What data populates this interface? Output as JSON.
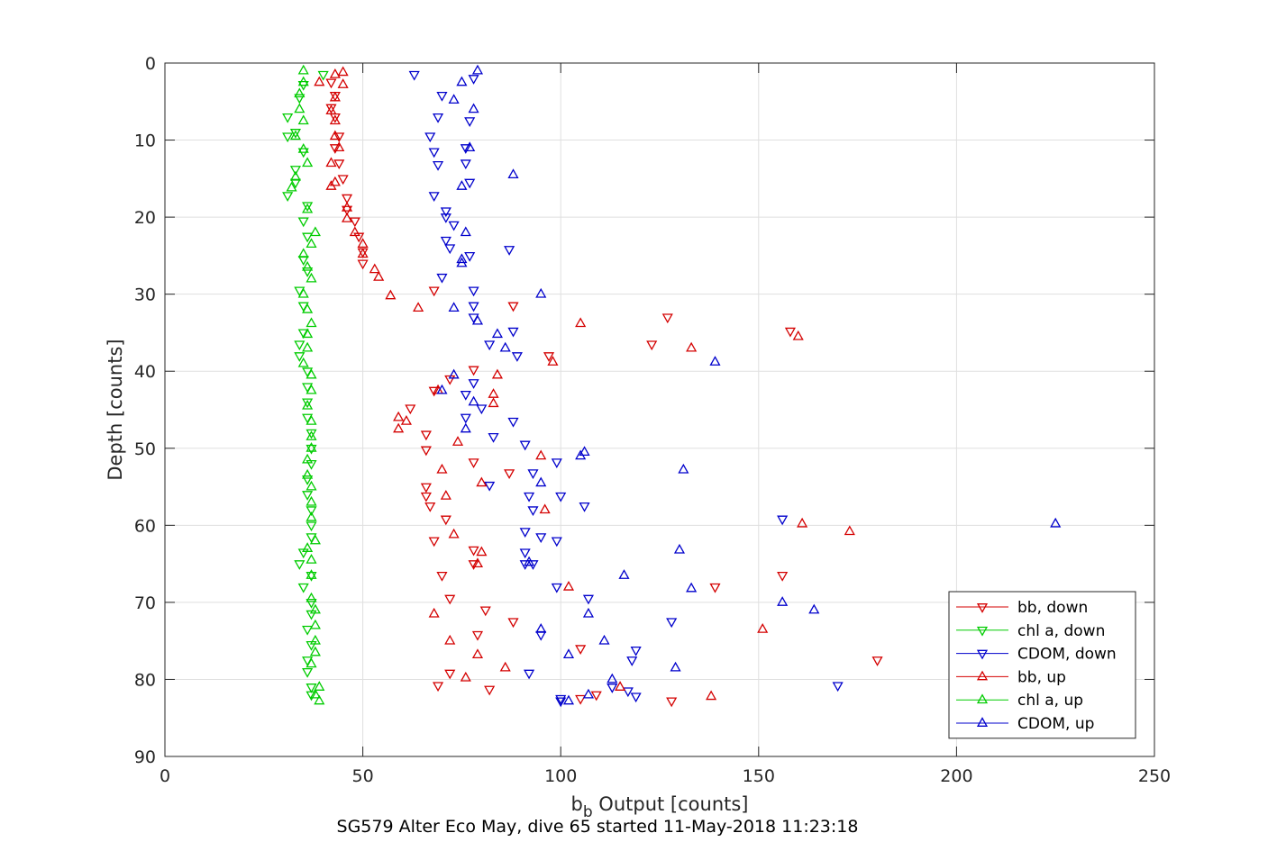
{
  "chart_data": {
    "type": "scatter",
    "title": "",
    "xlabel_main": "b",
    "xlabel_sub": "b",
    "xlabel_rest": " Output [counts]",
    "ylabel": "Depth [counts]",
    "footer": "SG579 Alter Eco May, dive 65 started 11-May-2018 11:23:18",
    "xlim": [
      0,
      250
    ],
    "ylim": [
      0,
      90
    ],
    "y_reversed": true,
    "grid": true,
    "x_ticks": [
      "0",
      "50",
      "100",
      "150",
      "200",
      "250"
    ],
    "y_ticks": [
      "0",
      "10",
      "20",
      "30",
      "40",
      "50",
      "60",
      "70",
      "80",
      "90"
    ],
    "legend_position": "lower-right",
    "series": [
      {
        "name": "bb, down",
        "color": "#d40000",
        "marker": "triangle-down",
        "points": [
          [
            42,
            2.5
          ],
          [
            43,
            4.2
          ],
          [
            42,
            5.8
          ],
          [
            43,
            7.0
          ],
          [
            44,
            9.5
          ],
          [
            43,
            11.0
          ],
          [
            44,
            13.0
          ],
          [
            45,
            15.0
          ],
          [
            46,
            17.5
          ],
          [
            46,
            19.0
          ],
          [
            48,
            20.5
          ],
          [
            49,
            22.5
          ],
          [
            50,
            24.5
          ],
          [
            50,
            26.0
          ],
          [
            68,
            29.5
          ],
          [
            88,
            31.5
          ],
          [
            127,
            33.0
          ],
          [
            158,
            34.8
          ],
          [
            123,
            36.5
          ],
          [
            97,
            38.0
          ],
          [
            78,
            39.8
          ],
          [
            72,
            41.0
          ],
          [
            68,
            42.5
          ],
          [
            62,
            44.8
          ],
          [
            66,
            48.2
          ],
          [
            66,
            50.2
          ],
          [
            78,
            51.8
          ],
          [
            87,
            53.2
          ],
          [
            66,
            55.0
          ],
          [
            66,
            56.2
          ],
          [
            67,
            57.5
          ],
          [
            71,
            59.2
          ],
          [
            68,
            62.0
          ],
          [
            78,
            63.2
          ],
          [
            78,
            65.0
          ],
          [
            70,
            66.5
          ],
          [
            156,
            66.5
          ],
          [
            139,
            68.0
          ],
          [
            72,
            69.5
          ],
          [
            81,
            71.0
          ],
          [
            88,
            72.5
          ],
          [
            79,
            74.2
          ],
          [
            105,
            76.0
          ],
          [
            180,
            77.5
          ],
          [
            72,
            79.2
          ],
          [
            69,
            80.8
          ],
          [
            82,
            81.3
          ],
          [
            109,
            82.0
          ],
          [
            105,
            82.5
          ],
          [
            128,
            82.8
          ]
        ]
      },
      {
        "name": "chl a, down",
        "color": "#00cc00",
        "marker": "triangle-down",
        "points": [
          [
            40,
            1.5
          ],
          [
            35,
            2.8
          ],
          [
            34,
            4.5
          ],
          [
            31,
            7.0
          ],
          [
            33,
            9.0
          ],
          [
            31,
            9.5
          ],
          [
            35,
            11.5
          ],
          [
            33,
            13.8
          ],
          [
            33,
            15.5
          ],
          [
            31,
            17.2
          ],
          [
            36,
            18.5
          ],
          [
            35,
            20.5
          ],
          [
            36,
            22.5
          ],
          [
            35,
            25.5
          ],
          [
            36,
            27.0
          ],
          [
            34,
            29.5
          ],
          [
            35,
            31.5
          ],
          [
            35,
            35.0
          ],
          [
            34,
            36.5
          ],
          [
            34,
            38.0
          ],
          [
            36,
            40.0
          ],
          [
            36,
            42.0
          ],
          [
            36,
            44.0
          ],
          [
            36,
            46.0
          ],
          [
            37,
            48.0
          ],
          [
            37,
            50.0
          ],
          [
            37,
            52.0
          ],
          [
            36,
            54.0
          ],
          [
            36,
            56.0
          ],
          [
            37,
            58.0
          ],
          [
            37,
            60.0
          ],
          [
            37,
            61.5
          ],
          [
            35,
            63.5
          ],
          [
            34,
            65.0
          ],
          [
            37,
            66.5
          ],
          [
            35,
            68.0
          ],
          [
            37,
            70.0
          ],
          [
            37,
            71.5
          ],
          [
            36,
            73.5
          ],
          [
            37,
            75.5
          ],
          [
            36,
            77.5
          ],
          [
            36,
            79.0
          ],
          [
            37,
            81.0
          ],
          [
            37,
            82.0
          ]
        ]
      },
      {
        "name": "CDOM, down",
        "color": "#0000cc",
        "marker": "triangle-down",
        "points": [
          [
            63,
            1.5
          ],
          [
            78,
            2.0
          ],
          [
            70,
            4.2
          ],
          [
            77,
            7.5
          ],
          [
            69,
            7.0
          ],
          [
            67,
            9.5
          ],
          [
            68,
            11.5
          ],
          [
            69,
            13.2
          ],
          [
            76,
            11.0
          ],
          [
            76,
            13.0
          ],
          [
            77,
            15.5
          ],
          [
            68,
            17.2
          ],
          [
            71,
            19.2
          ],
          [
            71,
            20.0
          ],
          [
            73,
            21.0
          ],
          [
            71,
            23.0
          ],
          [
            72,
            24.0
          ],
          [
            77,
            25.0
          ],
          [
            87,
            24.2
          ],
          [
            70,
            27.8
          ],
          [
            78,
            29.5
          ],
          [
            78,
            31.5
          ],
          [
            78,
            33.0
          ],
          [
            82,
            36.5
          ],
          [
            88,
            34.8
          ],
          [
            89,
            38.0
          ],
          [
            78,
            41.5
          ],
          [
            76,
            43.0
          ],
          [
            80,
            44.8
          ],
          [
            88,
            46.5
          ],
          [
            76,
            46.0
          ],
          [
            83,
            48.5
          ],
          [
            91,
            49.5
          ],
          [
            99,
            51.8
          ],
          [
            93,
            53.2
          ],
          [
            82,
            54.8
          ],
          [
            92,
            56.2
          ],
          [
            93,
            58.0
          ],
          [
            100,
            56.2
          ],
          [
            106,
            57.5
          ],
          [
            91,
            60.8
          ],
          [
            95,
            61.5
          ],
          [
            99,
            62.0
          ],
          [
            91,
            63.5
          ],
          [
            91,
            65.0
          ],
          [
            93,
            65.0
          ],
          [
            107,
            69.5
          ],
          [
            99,
            68.0
          ],
          [
            156,
            59.2
          ],
          [
            128,
            72.5
          ],
          [
            95,
            74.2
          ],
          [
            119,
            76.2
          ],
          [
            118,
            77.5
          ],
          [
            92,
            79.2
          ],
          [
            170,
            80.8
          ],
          [
            113,
            81.0
          ],
          [
            117,
            81.5
          ],
          [
            119,
            82.2
          ],
          [
            100,
            82.5
          ],
          [
            100,
            82.8
          ]
        ]
      },
      {
        "name": "bb, up",
        "color": "#d40000",
        "marker": "triangle-up",
        "points": [
          [
            45,
            1.2
          ],
          [
            43,
            1.5
          ],
          [
            39,
            2.5
          ],
          [
            45,
            2.8
          ],
          [
            43,
            4.5
          ],
          [
            42,
            6.2
          ],
          [
            43,
            7.5
          ],
          [
            43,
            9.5
          ],
          [
            44,
            11.0
          ],
          [
            42,
            13.0
          ],
          [
            43,
            15.5
          ],
          [
            42,
            16.0
          ],
          [
            46,
            18.8
          ],
          [
            46,
            20.2
          ],
          [
            48,
            22.0
          ],
          [
            50,
            23.5
          ],
          [
            50,
            24.8
          ],
          [
            53,
            26.8
          ],
          [
            54,
            27.8
          ],
          [
            57,
            30.2
          ],
          [
            64,
            31.8
          ],
          [
            105,
            33.8
          ],
          [
            160,
            35.5
          ],
          [
            133,
            37.0
          ],
          [
            98,
            38.8
          ],
          [
            84,
            40.5
          ],
          [
            69,
            42.5
          ],
          [
            83,
            43.0
          ],
          [
            83,
            44.2
          ],
          [
            61,
            46.5
          ],
          [
            59,
            46.0
          ],
          [
            59,
            47.5
          ],
          [
            74,
            49.2
          ],
          [
            95,
            51.0
          ],
          [
            70,
            52.8
          ],
          [
            80,
            54.5
          ],
          [
            71,
            56.2
          ],
          [
            96,
            58.0
          ],
          [
            161,
            59.8
          ],
          [
            173,
            60.8
          ],
          [
            73,
            61.2
          ],
          [
            80,
            63.5
          ],
          [
            79,
            65.0
          ],
          [
            102,
            68.0
          ],
          [
            68,
            71.5
          ],
          [
            72,
            75.0
          ],
          [
            151,
            73.5
          ],
          [
            79,
            76.8
          ],
          [
            86,
            78.5
          ],
          [
            76,
            79.8
          ],
          [
            115,
            81.0
          ],
          [
            138,
            82.2
          ]
        ]
      },
      {
        "name": "chl a, up",
        "color": "#00cc00",
        "marker": "triangle-up",
        "points": [
          [
            35,
            1.0
          ],
          [
            35,
            2.5
          ],
          [
            34,
            4.0
          ],
          [
            34,
            6.0
          ],
          [
            35,
            7.5
          ],
          [
            33,
            9.5
          ],
          [
            35,
            11.2
          ],
          [
            36,
            13.0
          ],
          [
            33,
            14.8
          ],
          [
            32,
            16.2
          ],
          [
            36,
            19.0
          ],
          [
            38,
            22.0
          ],
          [
            37,
            23.5
          ],
          [
            35,
            24.8
          ],
          [
            36,
            26.5
          ],
          [
            37,
            28.0
          ],
          [
            35,
            30.0
          ],
          [
            36,
            32.0
          ],
          [
            37,
            33.8
          ],
          [
            36,
            35.2
          ],
          [
            36,
            37.0
          ],
          [
            35,
            39.0
          ],
          [
            37,
            40.5
          ],
          [
            37,
            42.5
          ],
          [
            36,
            44.5
          ],
          [
            37,
            46.5
          ],
          [
            37,
            48.5
          ],
          [
            37,
            50.0
          ],
          [
            36,
            51.5
          ],
          [
            36,
            53.5
          ],
          [
            37,
            55.0
          ],
          [
            37,
            57.0
          ],
          [
            37,
            59.0
          ],
          [
            38,
            62.0
          ],
          [
            36,
            63.0
          ],
          [
            37,
            64.5
          ],
          [
            37,
            66.5
          ],
          [
            37,
            69.5
          ],
          [
            38,
            71.0
          ],
          [
            38,
            73.0
          ],
          [
            38,
            75.0
          ],
          [
            38,
            76.5
          ],
          [
            37,
            78.0
          ],
          [
            39,
            81.0
          ],
          [
            38,
            82.0
          ],
          [
            39,
            82.8
          ]
        ]
      },
      {
        "name": "CDOM, up",
        "color": "#0000cc",
        "marker": "triangle-up",
        "points": [
          [
            79,
            1.0
          ],
          [
            75,
            2.5
          ],
          [
            73,
            4.8
          ],
          [
            78,
            6.0
          ],
          [
            77,
            11.0
          ],
          [
            88,
            14.5
          ],
          [
            75,
            16.0
          ],
          [
            76,
            22.0
          ],
          [
            75,
            25.5
          ],
          [
            75,
            26.0
          ],
          [
            95,
            30.0
          ],
          [
            73,
            31.8
          ],
          [
            79,
            33.5
          ],
          [
            84,
            35.2
          ],
          [
            86,
            37.0
          ],
          [
            139,
            38.8
          ],
          [
            73,
            40.5
          ],
          [
            70,
            42.5
          ],
          [
            78,
            44.0
          ],
          [
            76,
            47.5
          ],
          [
            106,
            50.5
          ],
          [
            105,
            51.0
          ],
          [
            131,
            52.8
          ],
          [
            95,
            54.5
          ],
          [
            225,
            59.8
          ],
          [
            130,
            63.2
          ],
          [
            92,
            64.8
          ],
          [
            116,
            66.5
          ],
          [
            133,
            68.2
          ],
          [
            156,
            70.0
          ],
          [
            107,
            71.5
          ],
          [
            164,
            71.0
          ],
          [
            95,
            73.5
          ],
          [
            111,
            75.0
          ],
          [
            102,
            76.8
          ],
          [
            129,
            78.5
          ],
          [
            113,
            80.0
          ],
          [
            107,
            82.0
          ],
          [
            102,
            82.8
          ]
        ]
      }
    ]
  }
}
